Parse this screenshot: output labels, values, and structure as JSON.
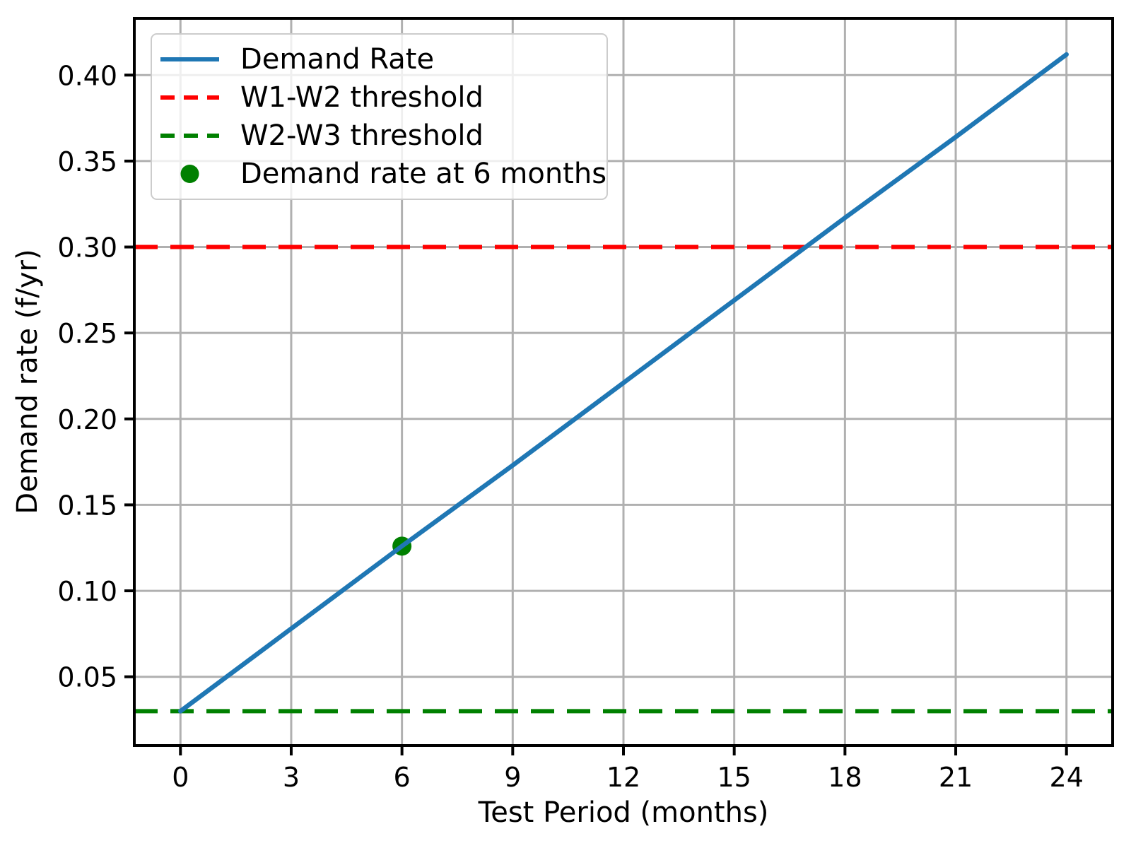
{
  "figure": {
    "background_color": "#ffffff"
  },
  "chart_data": {
    "type": "line",
    "title": "",
    "xlabel": "Test Period (months)",
    "ylabel": "Demand rate (f/yr)",
    "xlim": [
      -1.25,
      25.25
    ],
    "ylim": [
      0.01,
      0.433
    ],
    "xticks": [
      0,
      3,
      6,
      9,
      12,
      15,
      18,
      21,
      24
    ],
    "xtick_labels": [
      "0",
      "3",
      "6",
      "9",
      "12",
      "15",
      "18",
      "21",
      "24"
    ],
    "yticks": [
      0.05,
      0.1,
      0.15,
      0.2,
      0.25,
      0.3,
      0.35,
      0.4
    ],
    "ytick_labels": [
      "0.05",
      "0.10",
      "0.15",
      "0.20",
      "0.25",
      "0.30",
      "0.35",
      "0.40"
    ],
    "grid": true,
    "grid_color": "#b0b0b0",
    "axis_color": "#000000",
    "legend_position": "upper left",
    "series": [
      {
        "name": "Demand Rate",
        "kind": "line",
        "color": "#1f77b4",
        "linestyle": "solid",
        "x": [
          0,
          3,
          6,
          9,
          12,
          15,
          18,
          21,
          24
        ],
        "y": [
          0.03,
          0.078,
          0.126,
          0.173,
          0.221,
          0.269,
          0.317,
          0.364,
          0.412
        ]
      },
      {
        "name": "W1-W2 threshold",
        "kind": "hline",
        "color": "#ff0000",
        "linestyle": "dashed",
        "y": 0.3
      },
      {
        "name": "W2-W3 threshold",
        "kind": "hline",
        "color": "#008000",
        "linestyle": "dashed",
        "y": 0.03
      },
      {
        "name": "Demand rate at 6 months",
        "kind": "point",
        "color": "#008000",
        "x": 6,
        "y": 0.126
      }
    ],
    "legend": {
      "entries": [
        {
          "label": "Demand Rate",
          "marker": "solid-line",
          "color": "#1f77b4"
        },
        {
          "label": "W1-W2 threshold",
          "marker": "dashed-line",
          "color": "#ff0000"
        },
        {
          "label": "W2-W3 threshold",
          "marker": "dashed-line",
          "color": "#008000"
        },
        {
          "label": "Demand rate at 6 months",
          "marker": "dot",
          "color": "#008000"
        }
      ]
    }
  }
}
